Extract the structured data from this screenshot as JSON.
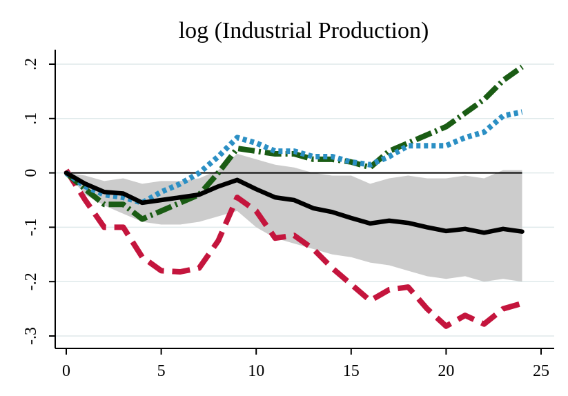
{
  "chart_data": {
    "type": "line",
    "title": "log (Industrial Production)",
    "xlabel": "",
    "ylabel": "",
    "xlim": [
      0,
      25
    ],
    "ylim": [
      -0.3,
      0.2
    ],
    "x_ticks": [
      0,
      5,
      10,
      15,
      20,
      25
    ],
    "x_tick_labels": [
      "0",
      "5",
      "10",
      "15",
      "20",
      "25"
    ],
    "y_ticks": [
      -0.3,
      -0.2,
      -0.1,
      0,
      0.1,
      0.2
    ],
    "y_tick_labels": [
      "-.3",
      "-.2",
      "-.1",
      "0",
      ".1",
      ".2"
    ],
    "grid": "horizontal",
    "legend": "none",
    "zero_line": 0,
    "band": {
      "color": "#cccccc",
      "x": [
        0,
        1,
        2,
        3,
        4,
        5,
        6,
        7,
        8,
        9,
        10,
        11,
        12,
        13,
        14,
        15,
        16,
        17,
        18,
        19,
        20,
        21,
        22,
        23,
        24
      ],
      "upper": [
        0.0,
        -0.005,
        -0.015,
        -0.01,
        -0.02,
        -0.015,
        -0.015,
        -0.01,
        0.005,
        0.035,
        0.025,
        0.015,
        0.01,
        0.0,
        -0.005,
        -0.005,
        -0.02,
        -0.01,
        -0.005,
        -0.01,
        -0.01,
        -0.005,
        -0.01,
        0.005,
        0.005
      ],
      "lower": [
        0.0,
        -0.04,
        -0.06,
        -0.075,
        -0.09,
        -0.095,
        -0.095,
        -0.09,
        -0.08,
        -0.07,
        -0.1,
        -0.12,
        -0.13,
        -0.14,
        -0.15,
        -0.155,
        -0.165,
        -0.17,
        -0.18,
        -0.19,
        -0.195,
        -0.19,
        -0.2,
        -0.195,
        -0.2
      ]
    },
    "series": [
      {
        "style": "solid",
        "color": "#000000",
        "x": [
          0,
          1,
          2,
          3,
          4,
          5,
          6,
          7,
          8,
          9,
          10,
          11,
          12,
          13,
          14,
          15,
          16,
          17,
          18,
          19,
          20,
          21,
          22,
          23,
          24
        ],
        "y": [
          0.0,
          -0.02,
          -0.035,
          -0.038,
          -0.055,
          -0.05,
          -0.045,
          -0.04,
          -0.025,
          -0.013,
          -0.03,
          -0.045,
          -0.05,
          -0.065,
          -0.072,
          -0.083,
          -0.093,
          -0.088,
          -0.092,
          -0.1,
          -0.107,
          -0.103,
          -0.11,
          -0.103,
          -0.108
        ]
      },
      {
        "style": "dotted",
        "color": "#2b8fc4",
        "x": [
          0,
          1,
          2,
          3,
          4,
          5,
          6,
          7,
          8,
          9,
          10,
          11,
          12,
          13,
          14,
          15,
          16,
          17,
          18,
          19,
          20,
          21,
          22,
          23,
          24
        ],
        "y": [
          0.0,
          -0.025,
          -0.04,
          -0.045,
          -0.055,
          -0.035,
          -0.02,
          0.0,
          0.03,
          0.065,
          0.055,
          0.04,
          0.04,
          0.03,
          0.03,
          0.02,
          0.015,
          0.03,
          0.05,
          0.05,
          0.05,
          0.065,
          0.075,
          0.105,
          0.112
        ]
      },
      {
        "style": "dash-dot",
        "color": "#1a5c14",
        "x": [
          0,
          1,
          2,
          3,
          4,
          5,
          6,
          7,
          8,
          9,
          10,
          11,
          12,
          13,
          14,
          15,
          16,
          17,
          18,
          19,
          20,
          21,
          22,
          23,
          24
        ],
        "y": [
          0.0,
          -0.03,
          -0.058,
          -0.058,
          -0.085,
          -0.07,
          -0.055,
          -0.04,
          0.0,
          0.045,
          0.04,
          0.035,
          0.035,
          0.025,
          0.025,
          0.02,
          0.01,
          0.04,
          0.055,
          0.07,
          0.085,
          0.11,
          0.135,
          0.17,
          0.195
        ]
      },
      {
        "style": "dashed",
        "color": "#c4153d",
        "x": [
          0,
          1,
          2,
          3,
          4,
          5,
          6,
          7,
          8,
          9,
          10,
          11,
          12,
          13,
          14,
          15,
          16,
          17,
          18,
          19,
          20,
          21,
          22,
          23,
          24
        ],
        "y": [
          0.005,
          -0.05,
          -0.1,
          -0.1,
          -0.155,
          -0.18,
          -0.182,
          -0.175,
          -0.125,
          -0.045,
          -0.07,
          -0.12,
          -0.115,
          -0.14,
          -0.175,
          -0.205,
          -0.235,
          -0.215,
          -0.21,
          -0.25,
          -0.282,
          -0.262,
          -0.278,
          -0.25,
          -0.24
        ]
      }
    ]
  }
}
